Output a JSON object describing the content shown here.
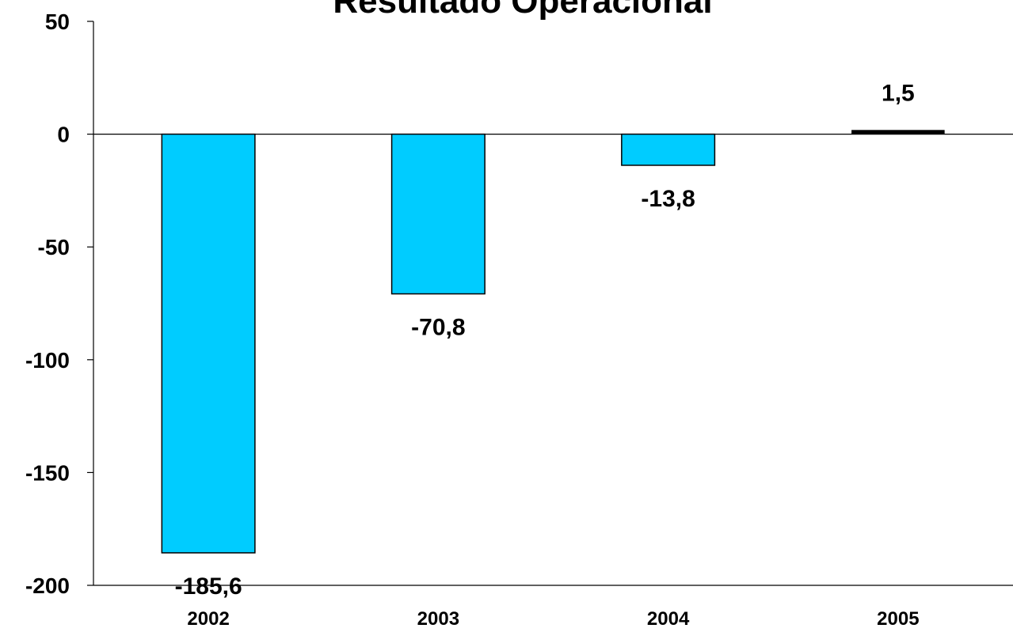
{
  "chart_data": {
    "type": "bar",
    "title": "Resultado Operacional",
    "categories": [
      "2002",
      "2003",
      "2004",
      "2005"
    ],
    "values": [
      -185.6,
      -70.8,
      -13.8,
      1.5
    ],
    "data_labels": [
      "-185,6",
      "-70,8",
      "-13,8",
      "1,5"
    ],
    "ylim": [
      -200,
      50
    ],
    "yticks": [
      50,
      0,
      -50,
      -100,
      -150,
      -200
    ],
    "ytick_labels": [
      "50",
      "0",
      "-50",
      "-100",
      "-150",
      "-200"
    ],
    "xlabel": "",
    "ylabel": "",
    "grid": false,
    "legend": "none",
    "bar_color": "#00CCFF",
    "bar_border_color": "#000000"
  }
}
